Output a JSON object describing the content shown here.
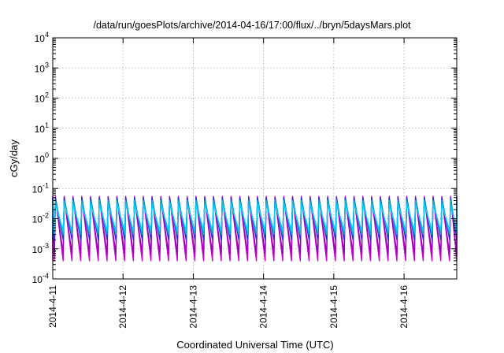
{
  "chart_data": {
    "type": "line",
    "title": "/data/run/goesPlots/archive/2014-04-16/17:00/flux/../bryn/5daysMars.plot",
    "xlabel": "Coordinated Universal Time (UTC)",
    "ylabel": "cGy/day",
    "yscale": "log",
    "ylim": [
      0.0001,
      10000
    ],
    "ytick_labels": [
      {
        "base": "10",
        "exp": "-4"
      },
      {
        "base": "10",
        "exp": "-3"
      },
      {
        "base": "10",
        "exp": "-2"
      },
      {
        "base": "10",
        "exp": "-1"
      },
      {
        "base": "10",
        "exp": "0"
      },
      {
        "base": "10",
        "exp": "1"
      },
      {
        "base": "10",
        "exp": "2"
      },
      {
        "base": "10",
        "exp": "3"
      },
      {
        "base": "10",
        "exp": "4"
      }
    ],
    "xlim": [
      "2014-04-11 00:00",
      "2014-04-16 18:00"
    ],
    "xtick_labels": [
      "2014-4-11",
      "2014-4-12",
      "2014-4-13",
      "2014-4-14",
      "2014-4-15",
      "2014-4-16"
    ],
    "grid": true,
    "legend": "none",
    "sawtooth_period_hours": 3,
    "series": [
      {
        "color": "#cc00cc",
        "min": 0.0004,
        "max": 0.055
      },
      {
        "color": "#9900bb",
        "min": 0.0007,
        "max": 0.05
      },
      {
        "color": "#2233dd",
        "min": 0.002,
        "max": 0.05
      },
      {
        "color": "#00bbbb",
        "min": 0.003,
        "max": 0.04
      },
      {
        "color": "#00ccff",
        "min": 0.004,
        "max": 0.03
      }
    ]
  }
}
